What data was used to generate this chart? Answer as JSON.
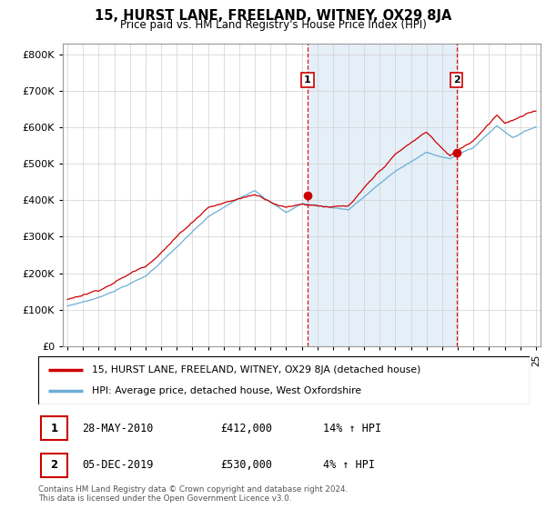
{
  "title": "15, HURST LANE, FREELAND, WITNEY, OX29 8JA",
  "subtitle": "Price paid vs. HM Land Registry's House Price Index (HPI)",
  "ytick_vals": [
    0,
    100000,
    200000,
    300000,
    400000,
    500000,
    600000,
    700000,
    800000
  ],
  "ylim": [
    0,
    830000
  ],
  "xlim_start": 1994.7,
  "xlim_end": 2025.3,
  "hpi_color": "#6baed6",
  "hpi_fill_color": "#c6dcf0",
  "price_color": "#cc0000",
  "dashed_color": "#cc0000",
  "marker1_year": 2010.38,
  "marker2_year": 2019.92,
  "marker1_price": 412000,
  "marker2_price": 530000,
  "legend_line1": "15, HURST LANE, FREELAND, WITNEY, OX29 8JA (detached house)",
  "legend_line2": "HPI: Average price, detached house, West Oxfordshire",
  "annotation1_label": "1",
  "annotation1_date": "28-MAY-2010",
  "annotation1_price": "£412,000",
  "annotation1_hpi": "14% ↑ HPI",
  "annotation2_label": "2",
  "annotation2_date": "05-DEC-2019",
  "annotation2_price": "£530,000",
  "annotation2_hpi": "4% ↑ HPI",
  "footer": "Contains HM Land Registry data © Crown copyright and database right 2024.\nThis data is licensed under the Open Government Licence v3.0.",
  "xtick_years": [
    1995,
    1996,
    1997,
    1998,
    1999,
    2000,
    2001,
    2002,
    2003,
    2004,
    2005,
    2006,
    2007,
    2008,
    2009,
    2010,
    2011,
    2012,
    2013,
    2014,
    2015,
    2016,
    2017,
    2018,
    2019,
    2020,
    2021,
    2022,
    2023,
    2024,
    2025
  ]
}
